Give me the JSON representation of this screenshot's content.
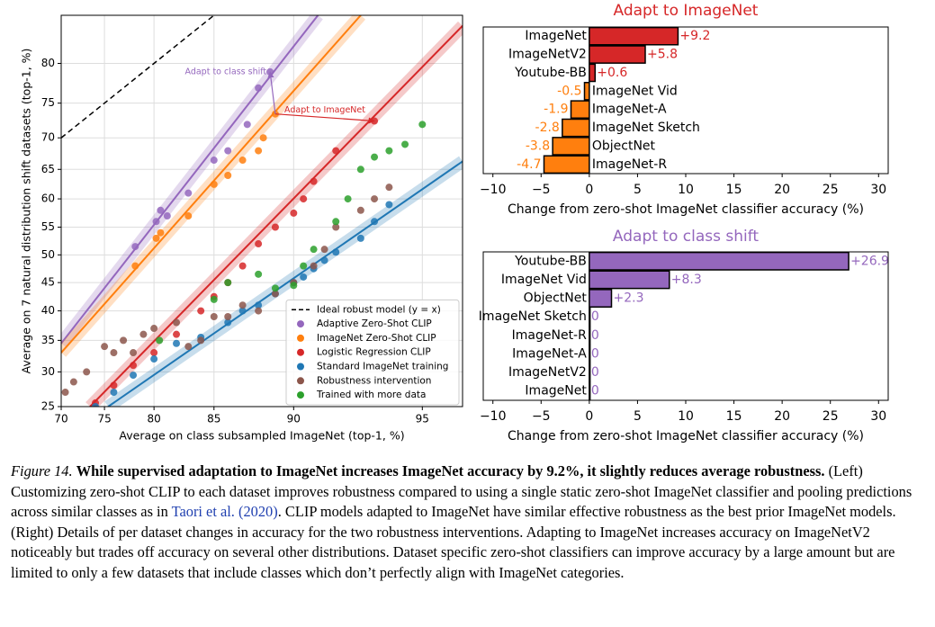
{
  "chart_data": [
    {
      "type": "scatter",
      "scale": "logit",
      "xlabel": "Average on class subsampled ImageNet (top-1, %)",
      "ylabel": "Average on 7 natural distribution shift datasets (top-1, %)",
      "xlim": [
        70,
        96
      ],
      "ylim": [
        25,
        85
      ],
      "xticks": [
        70,
        75,
        80,
        85,
        90,
        95
      ],
      "yticks": [
        25,
        30,
        35,
        40,
        45,
        50,
        55,
        60,
        65,
        70,
        75,
        80
      ],
      "grid": true,
      "legend": "lower right",
      "reference_line": {
        "label": "Ideal robust model (y = x)"
      },
      "series": [
        {
          "name": "Adaptive Zero-Shot CLIP",
          "color": "#9467bd",
          "x": [
            78.2,
            80.2,
            80.6,
            81.2,
            83,
            85,
            86,
            87.3,
            88,
            88.7
          ],
          "values": [
            51.5,
            56,
            58,
            57,
            61,
            66.5,
            68,
            72,
            77,
            79
          ],
          "fit": {
            "x": [
              70,
              91.2
            ],
            "values": [
              34.5,
              85
            ]
          }
        },
        {
          "name": "ImageNet Zero-Shot CLIP",
          "color": "#ff7f0e",
          "x": [
            78.2,
            80.2,
            80.6,
            83,
            85,
            86,
            87,
            88,
            88.3,
            89
          ],
          "values": [
            48,
            53,
            54,
            57,
            62.5,
            64,
            66.5,
            68,
            70,
            73.5
          ],
          "fit": {
            "x": [
              70,
              93
            ],
            "values": [
              33,
              85
            ]
          }
        },
        {
          "name": "Logistic Regression CLIP",
          "color": "#d62728",
          "x": [
            74,
            76,
            78,
            80,
            82,
            84,
            85,
            86,
            87,
            88,
            89,
            90,
            90.5,
            91,
            92,
            93.5
          ],
          "values": [
            25.5,
            28,
            31,
            33,
            36,
            40,
            42.5,
            45,
            48,
            52,
            55,
            57.5,
            60,
            63,
            68,
            72.5
          ],
          "fit": {
            "x": [
              73.4,
              96
            ],
            "values": [
              25,
              84
            ]
          }
        },
        {
          "name": "Standard ImageNet training",
          "color": "#1f77b4",
          "x": [
            74,
            76,
            78,
            80,
            82,
            84,
            86,
            87,
            88,
            89,
            90,
            90.5,
            91,
            91.5,
            92,
            93,
            93.5,
            94
          ],
          "values": [
            25,
            27,
            29.5,
            32,
            34.5,
            35.5,
            38,
            40,
            41,
            43,
            45,
            46,
            47.5,
            49,
            50.5,
            53,
            56,
            59
          ],
          "fit": {
            "x": [
              75.4,
              96
            ],
            "values": [
              25,
              66.3
            ]
          }
        },
        {
          "name": "Robustness intervention",
          "color": "#8c564b",
          "x": [
            70.5,
            71.5,
            73,
            75,
            76,
            77,
            78,
            79,
            80,
            82,
            83,
            84,
            85,
            86,
            87,
            88,
            89,
            90,
            91,
            91.5,
            92,
            93,
            93.5,
            94
          ],
          "values": [
            27,
            28.5,
            30,
            34,
            33,
            35,
            33,
            36,
            37,
            38,
            34,
            35,
            39,
            39,
            41,
            40,
            43,
            45,
            48,
            51,
            55,
            58,
            60,
            62
          ]
        },
        {
          "name": "Trained with more data",
          "color": "#2ca02c",
          "x": [
            80.5,
            85,
            86,
            88,
            89,
            90,
            90.5,
            91,
            92,
            92.5,
            93,
            93.5,
            94,
            94.5,
            95
          ],
          "values": [
            35,
            42,
            45,
            46.5,
            44,
            44.5,
            48,
            51,
            56,
            60,
            65,
            67,
            68,
            69,
            72
          ]
        }
      ],
      "annotations": [
        {
          "text": "Adapt to class shift",
          "x": 89,
          "y": 73.5,
          "to_x": 88.7,
          "to_y": 79,
          "color": "#9467bd"
        },
        {
          "text": "Adapt to ImageNet",
          "x": 89,
          "y": 73.5,
          "to_x": 93.5,
          "to_y": 72.5,
          "color": "#d62728"
        }
      ]
    },
    {
      "type": "barh",
      "title": "Adapt to ImageNet",
      "title_color": "#d62728",
      "categories": [
        "ImageNet",
        "ImageNetV2",
        "Youtube-BB",
        "ImageNet Vid",
        "ImageNet-A",
        "ImageNet Sketch",
        "ObjectNet",
        "ImageNet-R"
      ],
      "values": [
        9.2,
        5.8,
        0.6,
        -0.5,
        -1.9,
        -2.8,
        -3.8,
        -4.7
      ],
      "value_labels": [
        "+9.2",
        "+5.8",
        "+0.6",
        "-0.5",
        "-1.9",
        "-2.8",
        "-3.8",
        "-4.7"
      ],
      "positive_color": "#d62728",
      "negative_color": "#ff7f0e",
      "xlim": [
        -11,
        31
      ],
      "xticks": [
        {
          "value": -10,
          "label": "−10"
        },
        {
          "value": -5,
          "label": "−5"
        },
        0,
        5,
        10,
        15,
        20,
        25,
        30
      ],
      "xlabel": "Change from zero-shot ImageNet classifier accuracy (%)"
    },
    {
      "type": "barh",
      "title": "Adapt to class shift",
      "title_color": "#9467bd",
      "categories": [
        "Youtube-BB",
        "ImageNet Vid",
        "ObjectNet",
        "ImageNet Sketch",
        "ImageNet-R",
        "ImageNet-A",
        "ImageNetV2",
        "ImageNet"
      ],
      "values": [
        26.9,
        8.3,
        2.3,
        0,
        0,
        0,
        0,
        0
      ],
      "value_labels": [
        "+26.9",
        "+8.3",
        "+2.3",
        "0",
        "0",
        "0",
        "0",
        "0"
      ],
      "positive_color": "#9467bd",
      "negative_color": "#9467bd",
      "xlim": [
        -11,
        31
      ],
      "xticks": [
        {
          "value": -10,
          "label": "−10"
        },
        {
          "value": -5,
          "label": "−5"
        },
        0,
        5,
        10,
        15,
        20,
        25,
        30
      ],
      "xlabel": "Change from zero-shot ImageNet classifier accuracy (%)"
    }
  ],
  "caption": {
    "label": "Figure 14.",
    "title": "While supervised adaptation to ImageNet increases ImageNet accuracy by 9.2%, it slightly reduces average robustness.",
    "body_start": "(Left) Customizing zero-shot CLIP to each dataset improves robustness compared to using a single static zero-shot ImageNet classifier and pooling predictions across similar classes as in",
    "citation": "Taori et al. (2020)",
    "body_end": ". CLIP models adapted to ImageNet have similar effective robustness as the best prior ImageNet models. (Right) Details of per dataset changes in accuracy for the two robustness interventions. Adapting to ImageNet increases accuracy on ImageNetV2 noticeably but trades off accuracy on several other distributions. Dataset specific zero-shot classifiers can improve accuracy by a large amount but are limited to only a few datasets that include classes which don’t perfectly align with ImageNet categories."
  }
}
